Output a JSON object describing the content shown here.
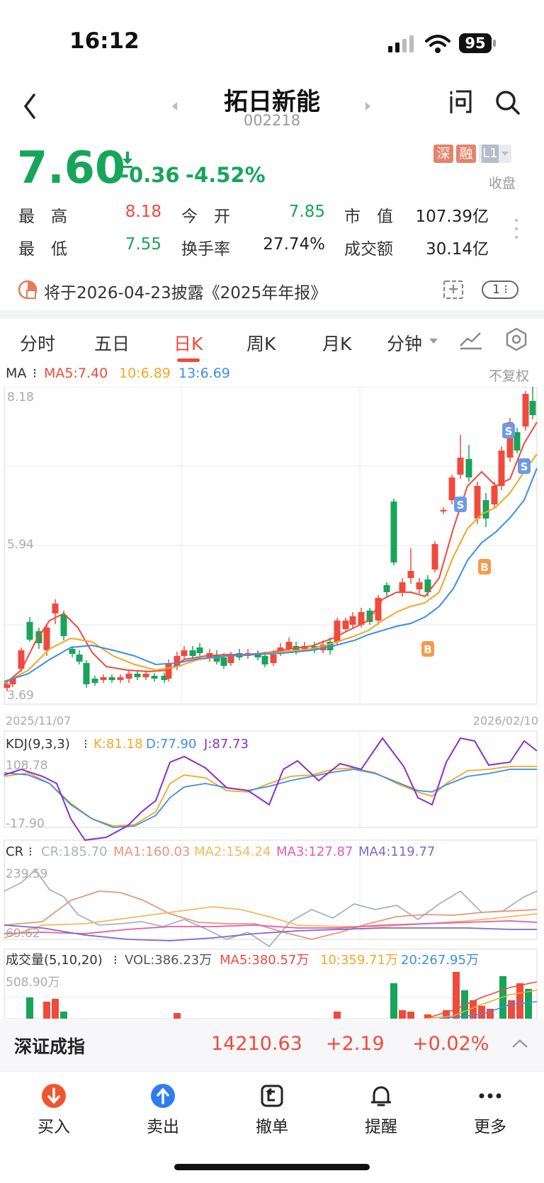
{
  "status": {
    "time": "16:12",
    "battery": "95"
  },
  "stock": {
    "name": "拓日新能",
    "code": "002218",
    "price": "7.60",
    "change": "-0.36",
    "change_pct": "-4.52%",
    "badges": [
      "深",
      "融",
      "L1"
    ],
    "state": "收盘"
  },
  "stats": {
    "high_label": "最　高",
    "high": "8.18",
    "open_label": "今　开",
    "open": "7.85",
    "mktcap_label": "市　值",
    "mktcap": "107.39亿",
    "low_label": "最　低",
    "low": "7.55",
    "turnover_label": "换手率",
    "turnover": "27.74%",
    "amount_label": "成交额",
    "amount": "30.14亿"
  },
  "notice": {
    "text": "将于2026-04-23披露《2025年年报》",
    "count": "1"
  },
  "tabs": [
    "分时",
    "五日",
    "日K",
    "周K",
    "月K",
    "分钟"
  ],
  "active_tab": "日K",
  "ma_legend": {
    "label": "MA",
    "ma5": "MA5:7.40",
    "ma10": "10:6.89",
    "ma13": "13:6.69",
    "adjust": "不复权"
  },
  "kline_axis": {
    "top": "8.18",
    "mid": "5.94",
    "bottom": "3.69",
    "date_start": "2025/11/07",
    "date_end": "2026/02/10"
  },
  "kdj": {
    "label": "KDJ(9,3,3)",
    "k": "K:81.18",
    "d": "D:77.90",
    "j": "J:87.73",
    "top": "108.78",
    "bottom": "-17.90"
  },
  "cr": {
    "label": "CR",
    "cr": "CR:185.70",
    "ma1": "MA1:160.03",
    "ma2": "MA2:154.24",
    "ma3": "MA3:127.87",
    "ma4": "MA4:119.77",
    "top": "239.59",
    "bottom": "69.62"
  },
  "vol": {
    "label": "成交量(5,10,20)",
    "vol": "VOL:386.23万",
    "ma5": "MA5:380.57万",
    "ma10": "10:359.71万",
    "ma20": "20:267.95万",
    "top": "508.90万"
  },
  "index": {
    "name": "深证成指",
    "value": "14210.63",
    "change": "+2.19",
    "pct": "+0.02%"
  },
  "bottom_bar": {
    "buy": "买入",
    "sell": "卖出",
    "cancel": "撤单",
    "alert": "提醒",
    "more": "更多"
  },
  "markers": {
    "buy": "B",
    "sell": "S"
  },
  "colors": {
    "up": "#f04a3d",
    "down": "#16a55a",
    "ma5": "#f04a3d",
    "ma10": "#f5a623",
    "ma13": "#3a8fe8",
    "k": "#f5a623",
    "d": "#3a8fe8",
    "j": "#8b2fc9"
  }
}
